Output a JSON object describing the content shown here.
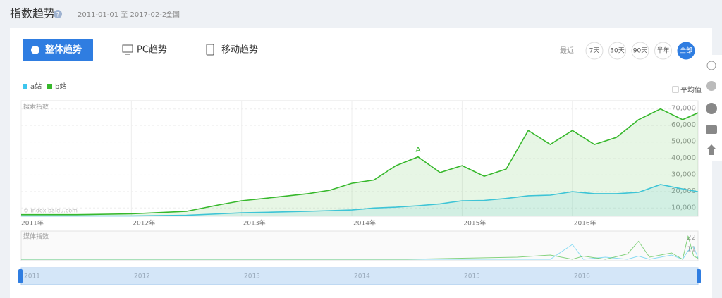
{
  "header": {
    "title": "指数趋势",
    "date_range": "2011-01-01 至 2017-02-21",
    "region": "全国"
  },
  "tabs": [
    "整体趋势",
    "PC趋势",
    "移动趋势"
  ],
  "range_label": "最近",
  "range_buttons": [
    "7天",
    "30天",
    "90天",
    "半年",
    "全部"
  ],
  "average_label": "平均值",
  "watermark": "© index.baidu.com",
  "chart_data": [
    {
      "type": "line",
      "area": true,
      "grid": true,
      "legend": "top-left",
      "ylabel": "搜索指数",
      "x": [
        2011,
        2011.5,
        2012,
        2012.5,
        2012.8,
        2013.0,
        2013.3,
        2013.6,
        2013.8,
        2014.0,
        2014.2,
        2014.4,
        2014.6,
        2014.8,
        2015.0,
        2015.2,
        2015.4,
        2015.6,
        2015.8,
        2016.0,
        2016.2,
        2016.4,
        2016.6,
        2016.8,
        2017.0,
        2017.14
      ],
      "series": [
        {
          "name": "a站",
          "color": "#3ec6ee",
          "values": [
            5200,
            5200,
            5200,
            5600,
            6500,
            7100,
            7500,
            8000,
            8400,
            8800,
            10000,
            10500,
            11400,
            12500,
            14400,
            14600,
            15800,
            17400,
            17800,
            19900,
            18700,
            18700,
            19500,
            24200,
            21600,
            19900
          ]
        },
        {
          "name": "b站",
          "color": "#37b82c",
          "values": [
            6000,
            6000,
            6500,
            8000,
            12000,
            14400,
            16500,
            18700,
            20800,
            25000,
            27000,
            35700,
            41000,
            31500,
            35700,
            29300,
            33600,
            57000,
            48500,
            57000,
            48500,
            52800,
            63500,
            70000,
            63500,
            67700
          ]
        }
      ],
      "annotations": [
        {
          "text": "A",
          "x": 2014.6,
          "y": 41000
        }
      ],
      "xlim": [
        2011,
        2017.14
      ],
      "xticks": [
        {
          "value": 2011,
          "label": "2011年"
        },
        {
          "value": 2012,
          "label": "2012年"
        },
        {
          "value": 2013,
          "label": "2013年"
        },
        {
          "value": 2014,
          "label": "2014年"
        },
        {
          "value": 2015,
          "label": "2015年"
        },
        {
          "value": 2016,
          "label": "2016年"
        }
      ],
      "ylim": [
        5000,
        75000
      ],
      "yticks": [
        {
          "value": 10000,
          "label": "10,000"
        },
        {
          "value": 20000,
          "label": "20,000"
        },
        {
          "value": 30000,
          "label": "30,000"
        },
        {
          "value": 40000,
          "label": "40,000"
        },
        {
          "value": 50000,
          "label": "50,000"
        },
        {
          "value": 60000,
          "label": "60,000"
        },
        {
          "value": 70000,
          "label": "70,000"
        }
      ]
    },
    {
      "type": "line",
      "ylabel": "媒体指数",
      "x": [
        2011,
        2014.5,
        2015.0,
        2015.5,
        2015.8,
        2016.0,
        2016.1,
        2016.3,
        2016.5,
        2016.6,
        2016.7,
        2016.9,
        2017.0,
        2017.05,
        2017.1,
        2017.14
      ],
      "series": [
        {
          "color": "#3ec6ee",
          "values": [
            0,
            0,
            0,
            0,
            0,
            14,
            0,
            2,
            0,
            3,
            0,
            4,
            0,
            8,
            12,
            1
          ]
        },
        {
          "color": "#37b82c",
          "values": [
            0,
            0,
            1,
            2,
            4,
            0,
            3,
            0,
            5,
            17,
            2,
            6,
            0,
            22,
            3,
            1
          ]
        }
      ],
      "xlim": [
        2011,
        2017.14
      ],
      "ylim": [
        0,
        22
      ],
      "yticks": [
        11,
        22
      ]
    }
  ],
  "navigator": {
    "labels": [
      "2011",
      "2012",
      "2013",
      "2014",
      "2015",
      "2016"
    ]
  }
}
